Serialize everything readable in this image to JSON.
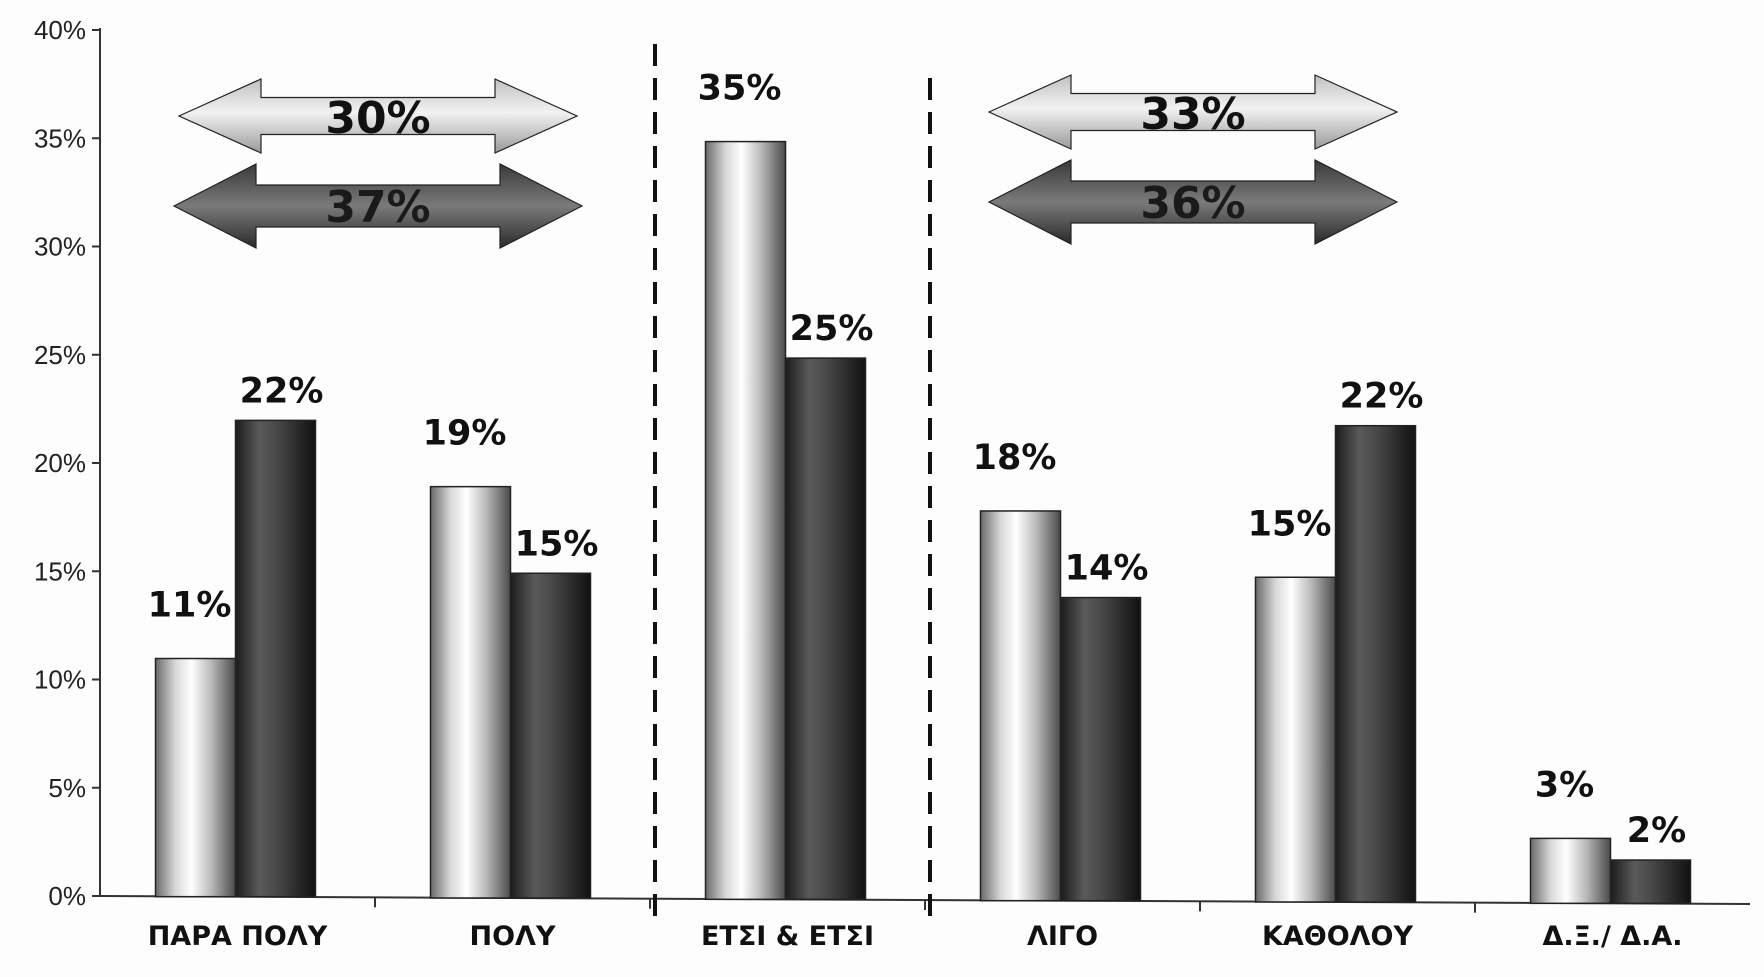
{
  "chart_data": {
    "type": "bar",
    "categories": [
      "ΠΑΡΑ ΠΟΛΥ",
      "ΠΟΛΥ",
      "ΕΤΣΙ & ΕΤΣΙ",
      "ΛΙΓΟ",
      "ΚΑΘΟΛΟΥ",
      "Δ.Ξ./ Δ.Α."
    ],
    "series": [
      {
        "values": [
          11,
          19,
          35,
          18,
          15,
          3
        ],
        "labels": [
          "11%",
          "19%",
          "35%",
          "18%",
          "15%",
          "3%"
        ],
        "color": "#c8c8c8"
      },
      {
        "values": [
          22,
          15,
          25,
          14,
          22,
          2
        ],
        "labels": [
          "22%",
          "15%",
          "25%",
          "14%",
          "22%",
          "2%"
        ],
        "color": "#3a3a3a"
      }
    ],
    "ylim": [
      0,
      40
    ],
    "yticks": [
      0,
      5,
      10,
      15,
      20,
      25,
      30,
      35,
      40
    ],
    "ytick_labels": [
      "0%",
      "5%",
      "10%",
      "15%",
      "20%",
      "25%",
      "30%",
      "35%",
      "40%"
    ],
    "grid": false,
    "annotations": [
      {
        "text": "30%",
        "style": "light-double-arrow",
        "spans": "ΠΑΡΑ ΠΟΛΥ + ΠΟΛΥ"
      },
      {
        "text": "37%",
        "style": "dark-double-arrow",
        "spans": "ΠΑΡΑ ΠΟΛΥ + ΠΟΛΥ"
      },
      {
        "text": "33%",
        "style": "light-double-arrow",
        "spans": "ΛΙΓΟ + ΚΑΘΟΛΟΥ"
      },
      {
        "text": "36%",
        "style": "dark-double-arrow",
        "spans": "ΛΙΓΟ + ΚΑΘΟΛΟΥ"
      }
    ],
    "separators": [
      "between ΠΟΛΥ and ΕΤΣΙ & ΕΤΣΙ",
      "between ΕΤΣΙ & ΕΤΣΙ and ΛΙΓΟ"
    ]
  }
}
